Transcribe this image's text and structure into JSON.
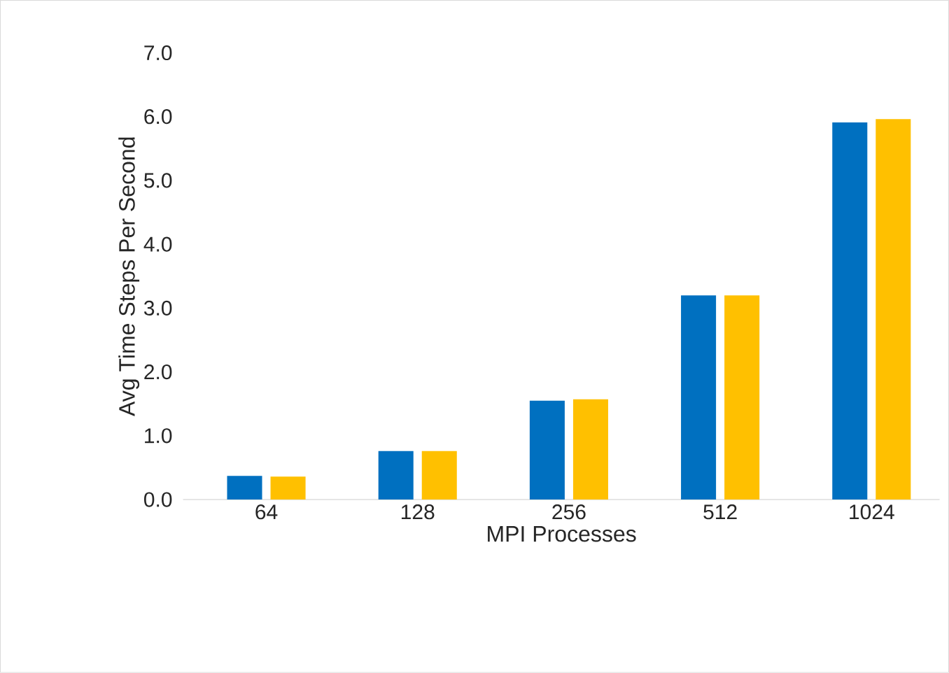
{
  "chart_data": {
    "type": "bar",
    "xlabel": "MPI Processes",
    "ylabel": "Avg Time Steps Per Second",
    "categories": [
      "64",
      "128",
      "256",
      "512",
      "1024"
    ],
    "series": [
      {
        "color": "#0070c0",
        "values": [
          0.37,
          0.76,
          1.55,
          3.2,
          5.91
        ]
      },
      {
        "color": "#ffc000",
        "values": [
          0.36,
          0.76,
          1.57,
          3.2,
          5.96
        ]
      }
    ],
    "ylim": [
      0,
      7
    ],
    "yticks": [
      {
        "value": 0,
        "label": "0.0"
      },
      {
        "value": 1,
        "label": "1.0"
      },
      {
        "value": 2,
        "label": "2.0"
      },
      {
        "value": 3,
        "label": "3.0"
      },
      {
        "value": 4,
        "label": "4.0"
      },
      {
        "value": 5,
        "label": "5.0"
      },
      {
        "value": 6,
        "label": "6.0"
      },
      {
        "value": 7,
        "label": "7.0"
      }
    ],
    "marker": "none"
  }
}
